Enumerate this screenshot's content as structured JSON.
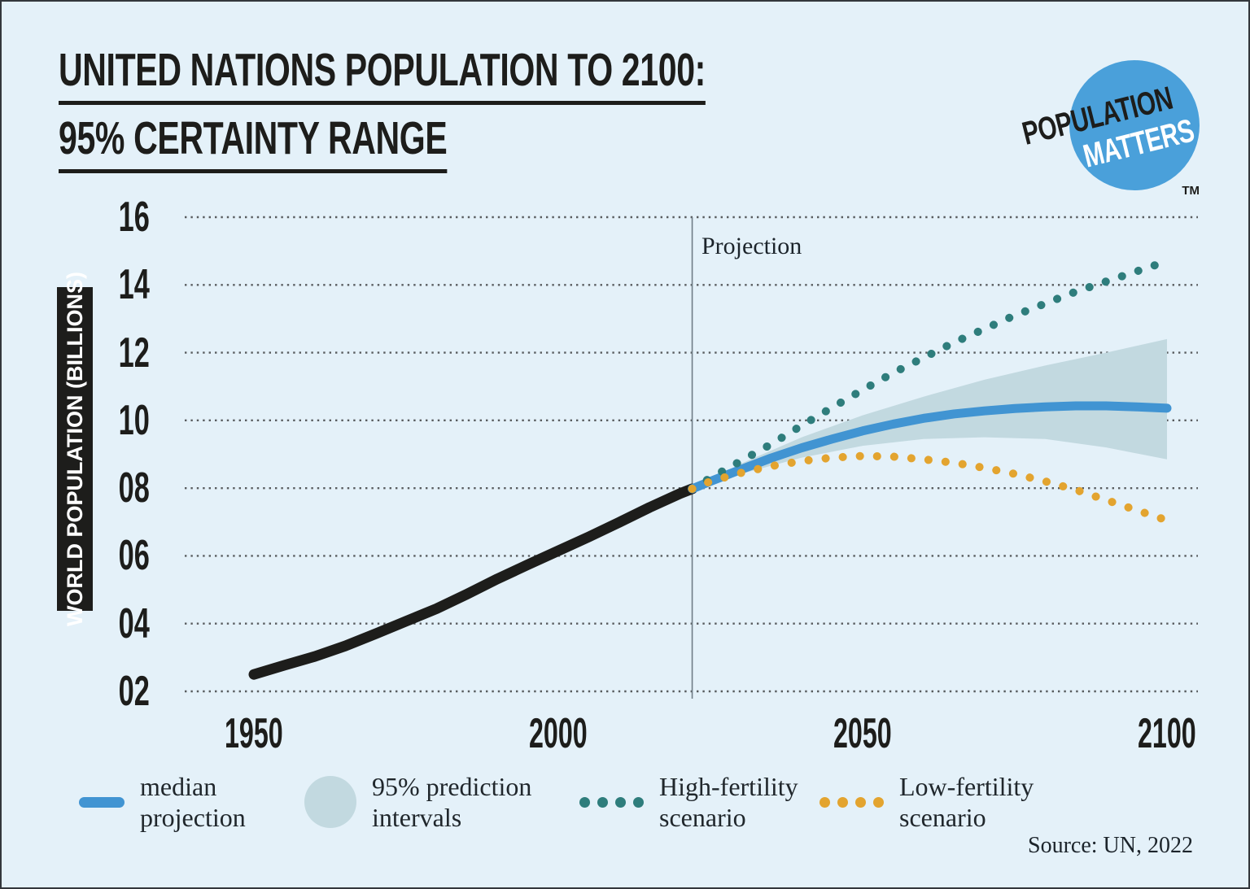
{
  "title": {
    "line1": "UNITED NATIONS POPULATION TO 2100:",
    "line2": "95% CERTAINTY RANGE"
  },
  "logo": {
    "line1": "POPULATION",
    "line2": "MATTERS",
    "tm": "TM"
  },
  "source": "Source: UN, 2022",
  "colors": {
    "background": "#e4f1f9",
    "text": "#1d1d1b",
    "historical": "#1d1d1b",
    "median": "#4194d2",
    "band": "#c2d9e0",
    "high_fertility": "#2e7d7c",
    "low_fertility": "#e3a42f",
    "gridline": "#585c5f",
    "projection_line": "#6f7d86",
    "logo_blue": "#4aa0da",
    "logo_text_dark": "#1d1d1b",
    "logo_text_light": "#ffffff"
  },
  "chart_data": {
    "type": "line",
    "title": "United Nations population to 2100: 95% certainty range",
    "xlabel": "",
    "ylabel": "WORLD POPULATION (BILLIONS)",
    "annotation": "Projection",
    "projection_start_year": 2022,
    "xlim": [
      1950,
      2100
    ],
    "ylim": [
      2,
      16
    ],
    "grid": "dotted-horizontal",
    "x_ticks": [
      {
        "label": "1950",
        "value": 1950
      },
      {
        "label": "2000",
        "value": 2000
      },
      {
        "label": "2050",
        "value": 2050
      },
      {
        "label": "2100",
        "value": 2100
      }
    ],
    "y_ticks": [
      {
        "label": "16",
        "value": 16
      },
      {
        "label": "14",
        "value": 14
      },
      {
        "label": "12",
        "value": 12
      },
      {
        "label": "10",
        "value": 10
      },
      {
        "label": "08",
        "value": 8
      },
      {
        "label": "06",
        "value": 6
      },
      {
        "label": "04",
        "value": 4
      },
      {
        "label": "02",
        "value": 2
      }
    ],
    "series": [
      {
        "name": "historical population",
        "style": "solid",
        "width": 13,
        "color_key": "historical",
        "x": [
          1950,
          1955,
          1960,
          1965,
          1970,
          1975,
          1980,
          1985,
          1990,
          1995,
          2000,
          2005,
          2010,
          2015,
          2020,
          2022
        ],
        "y": [
          2.5,
          2.77,
          3.03,
          3.34,
          3.7,
          4.07,
          4.44,
          4.87,
          5.32,
          5.74,
          6.15,
          6.56,
          6.99,
          7.43,
          7.84,
          7.98
        ]
      },
      {
        "name": "median projection",
        "style": "solid",
        "width": 11,
        "color_key": "median",
        "x": [
          2022,
          2025,
          2030,
          2035,
          2040,
          2045,
          2050,
          2055,
          2060,
          2065,
          2070,
          2075,
          2080,
          2085,
          2090,
          2095,
          2100
        ],
        "y": [
          7.98,
          8.2,
          8.55,
          8.89,
          9.19,
          9.45,
          9.69,
          9.89,
          10.06,
          10.19,
          10.28,
          10.35,
          10.4,
          10.43,
          10.43,
          10.4,
          10.36
        ]
      },
      {
        "name": "High-fertility scenario",
        "style": "dotted",
        "width": 10,
        "color_key": "high_fertility",
        "x": [
          2022,
          2025,
          2030,
          2035,
          2040,
          2045,
          2050,
          2055,
          2060,
          2065,
          2070,
          2075,
          2080,
          2085,
          2090,
          2095,
          2100
        ],
        "y": [
          7.98,
          8.3,
          8.8,
          9.3,
          9.85,
          10.38,
          10.9,
          11.4,
          11.85,
          12.3,
          12.7,
          13.1,
          13.45,
          13.8,
          14.1,
          14.4,
          14.7
        ]
      },
      {
        "name": "Low-fertility scenario",
        "style": "dotted",
        "width": 10,
        "color_key": "low_fertility",
        "x": [
          2022,
          2025,
          2030,
          2035,
          2040,
          2045,
          2050,
          2055,
          2060,
          2065,
          2070,
          2075,
          2080,
          2085,
          2090,
          2095,
          2100
        ],
        "y": [
          7.98,
          8.2,
          8.45,
          8.65,
          8.8,
          8.9,
          8.95,
          8.93,
          8.85,
          8.75,
          8.6,
          8.42,
          8.2,
          7.95,
          7.65,
          7.35,
          7.05
        ]
      }
    ],
    "band": {
      "name": "95% prediction intervals",
      "color_key": "band",
      "years": [
        2022,
        2030,
        2040,
        2050,
        2060,
        2070,
        2080,
        2090,
        2100
      ],
      "upper": [
        7.98,
        8.72,
        9.5,
        10.15,
        10.7,
        11.2,
        11.62,
        12.0,
        12.4
      ],
      "lower": [
        7.98,
        8.42,
        8.9,
        9.25,
        9.45,
        9.5,
        9.45,
        9.2,
        8.85
      ]
    }
  },
  "legend": {
    "items": [
      {
        "line1": "median",
        "line2": "projection",
        "swatch": "line",
        "color": "#4194d2"
      },
      {
        "line1": "95% prediction",
        "line2": "intervals",
        "swatch": "ellipse",
        "color": "#c2d9e0"
      },
      {
        "line1": "High-fertility",
        "line2": "scenario",
        "swatch": "dots",
        "color": "#2e7d7c"
      },
      {
        "line1": "Low-fertility",
        "line2": "scenario",
        "swatch": "dots",
        "color": "#e3a42f"
      }
    ]
  }
}
